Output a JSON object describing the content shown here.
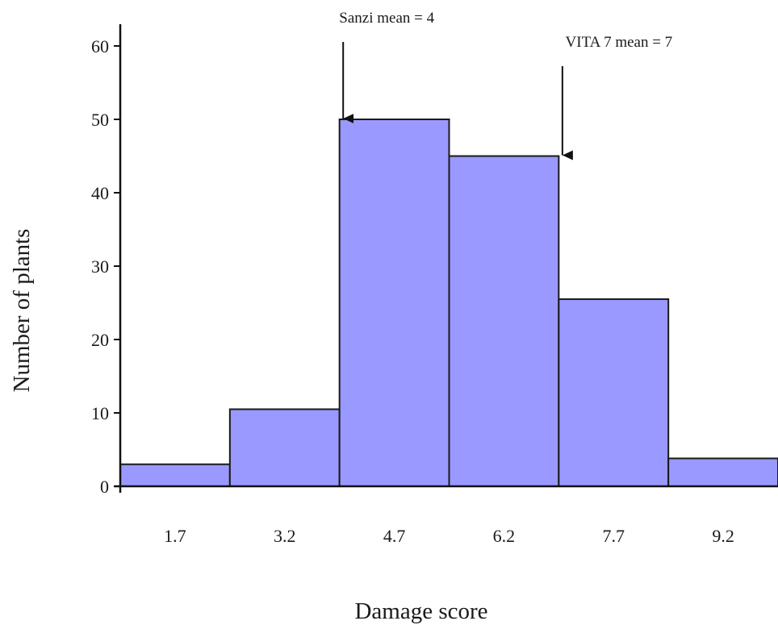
{
  "chart_data": {
    "type": "bar",
    "title": "",
    "xlabel": "Damage score",
    "ylabel": "Number of plants",
    "categories": [
      "1.7",
      "3.2",
      "4.7",
      "6.2",
      "7.7",
      "9.2"
    ],
    "values": [
      3,
      10.5,
      50,
      45,
      25.5,
      3.8
    ],
    "ylim": [
      0,
      60
    ],
    "yticks": [
      "0",
      "10",
      "20",
      "30",
      "40",
      "50",
      "60"
    ],
    "grid": false,
    "legend": "none",
    "bar_color": "#9999ff",
    "bar_edge_color": "#1a1a1a",
    "annotations": [
      {
        "label": "Sanzi mean = 4",
        "x": 4,
        "points_to_value": 50
      },
      {
        "label": "VITA 7 mean = 7",
        "x": 7,
        "points_to_value": 45
      }
    ]
  }
}
